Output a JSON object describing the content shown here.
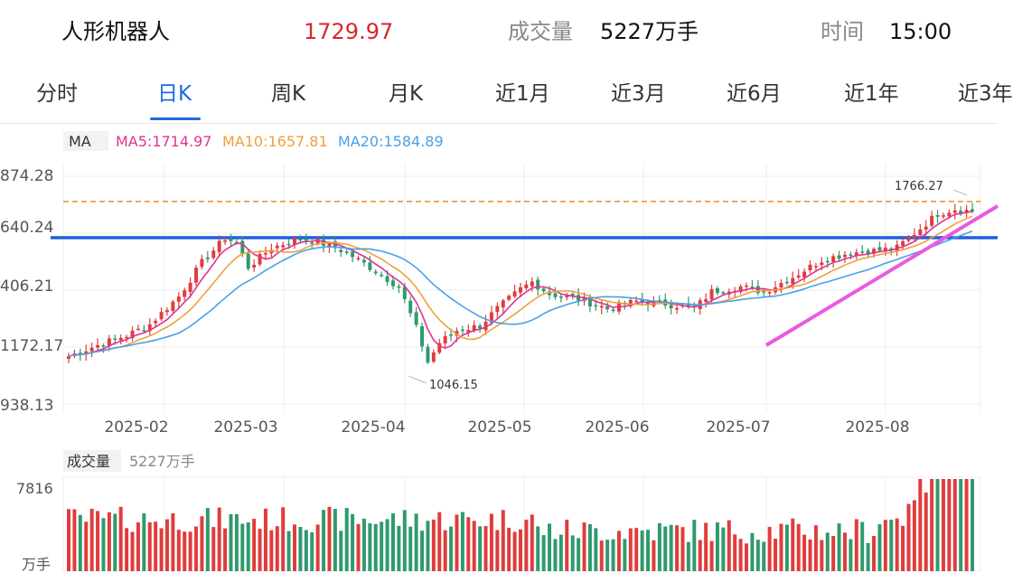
{
  "header": {
    "name": "人形机器人",
    "price": "1729.97",
    "volume_label": "成交量",
    "volume_value": "5227万手",
    "time_label": "时间",
    "time_value": "15:00"
  },
  "tabs": [
    "分时",
    "日K",
    "周K",
    "月K",
    "近1月",
    "近3月",
    "近6月",
    "近1年",
    "近3年"
  ],
  "active_tab": "日K",
  "colors": {
    "up": "#e03c3c",
    "down": "#2f9a6c",
    "ma5": "#e0338f",
    "ma10": "#f0a03c",
    "ma20": "#4aa0e8",
    "accent": "#1f6ae0"
  },
  "chart_data": {
    "type": "candlestick",
    "ma_legend": {
      "label": "MA",
      "ma5": "MA5:1714.97",
      "ma10": "MA10:1657.81",
      "ma20": "MA20:1584.89"
    },
    "y_ticks": [
      "874.28",
      "640.24",
      "406.21",
      "1172.17",
      "938.13"
    ],
    "x_ticks": [
      "2025-02",
      "2025-03",
      "2025-04",
      "2025-05",
      "2025-06",
      "2025-07",
      "2025-08"
    ],
    "annotations": {
      "high_label": "1766.27",
      "low_label": "1046.15",
      "high": 1766.27,
      "low": 1046.15
    },
    "price_range": [
      938.13,
      1874.28
    ],
    "horizontal_line": 1640.24,
    "volume": {
      "label": "成交量",
      "value_label": "5227万手",
      "y_tick": "7816",
      "unit": "万手"
    },
    "anchors": [
      {
        "i": 0,
        "c": 1135
      },
      {
        "i": 5,
        "c": 1180
      },
      {
        "i": 10,
        "c": 1220
      },
      {
        "i": 14,
        "c": 1265
      },
      {
        "i": 19,
        "c": 1380
      },
      {
        "i": 23,
        "c": 1520
      },
      {
        "i": 27,
        "c": 1620
      },
      {
        "i": 29,
        "c": 1600
      },
      {
        "i": 31,
        "c": 1500
      },
      {
        "i": 35,
        "c": 1580
      },
      {
        "i": 40,
        "c": 1620
      },
      {
        "i": 45,
        "c": 1590
      },
      {
        "i": 48,
        "c": 1560
      },
      {
        "i": 52,
        "c": 1500
      },
      {
        "i": 57,
        "c": 1420
      },
      {
        "i": 60,
        "c": 1250
      },
      {
        "i": 62,
        "c": 1110
      },
      {
        "i": 64,
        "c": 1190
      },
      {
        "i": 67,
        "c": 1240
      },
      {
        "i": 71,
        "c": 1260
      },
      {
        "i": 74,
        "c": 1330
      },
      {
        "i": 78,
        "c": 1410
      },
      {
        "i": 80,
        "c": 1440
      },
      {
        "i": 83,
        "c": 1390
      },
      {
        "i": 88,
        "c": 1370
      },
      {
        "i": 93,
        "c": 1330
      },
      {
        "i": 98,
        "c": 1360
      },
      {
        "i": 103,
        "c": 1350
      },
      {
        "i": 108,
        "c": 1330
      },
      {
        "i": 111,
        "c": 1400
      },
      {
        "i": 116,
        "c": 1420
      },
      {
        "i": 120,
        "c": 1400
      },
      {
        "i": 125,
        "c": 1460
      },
      {
        "i": 130,
        "c": 1530
      },
      {
        "i": 135,
        "c": 1560
      },
      {
        "i": 140,
        "c": 1570
      },
      {
        "i": 143,
        "c": 1580
      },
      {
        "i": 147,
        "c": 1660
      },
      {
        "i": 150,
        "c": 1720
      },
      {
        "i": 153,
        "c": 1740
      },
      {
        "i": 156,
        "c": 1729.97
      }
    ]
  }
}
